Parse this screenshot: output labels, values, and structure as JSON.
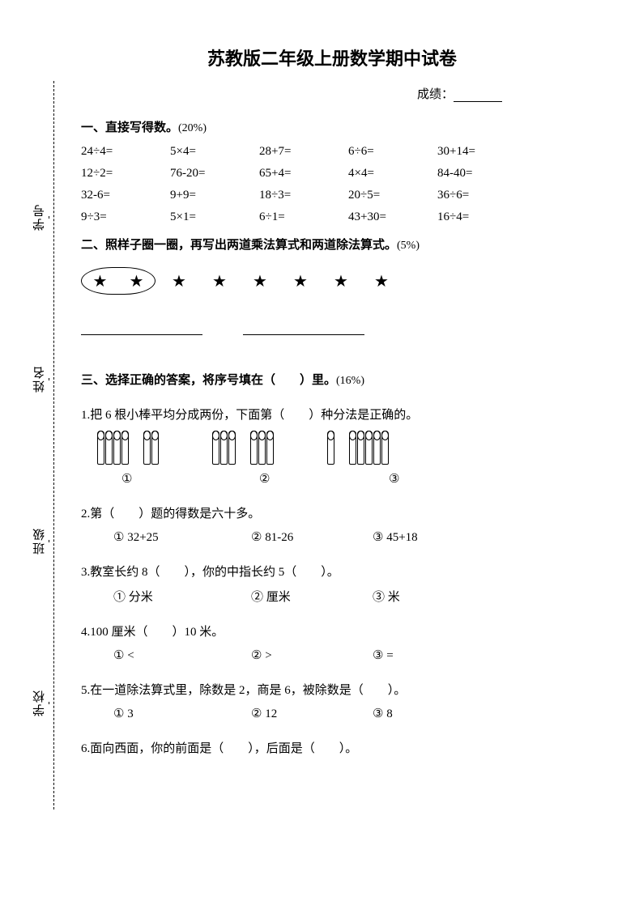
{
  "title": "苏教版二年级上册数学期中试卷",
  "score_label": "成绩：",
  "binding": {
    "school": "学校",
    "class": "班级",
    "name": "姓名",
    "number": "学号"
  },
  "section1": {
    "head_bold": "一、直接写得数。",
    "head_pct": "(20%)",
    "rows": [
      [
        "24÷4=",
        "5×4=",
        "28+7=",
        "6÷6=",
        "30+14="
      ],
      [
        "12÷2=",
        "76-20=",
        "65+4=",
        "4×4=",
        "84-40="
      ],
      [
        "32-6=",
        "9+9=",
        "18÷3=",
        "20÷5=",
        "36÷6="
      ],
      [
        "9÷3=",
        "5×1=",
        "6÷1=",
        "43+30=",
        "16÷4="
      ]
    ]
  },
  "section2": {
    "head_bold": "二、照样子圈一圈，再写出两道乘法算式和两道除法算式。",
    "head_pct": "(5%)",
    "star_char": "★",
    "total_stars": 8,
    "circled_count": 2
  },
  "section3": {
    "head_bold": "三、选择正确的答案，将序号填在（　　）里。",
    "head_pct": "(16%)",
    "q1": {
      "text": "1.把 6 根小棒平均分成两份，下面第（　　）种分法是正确的。",
      "groups": [
        [
          4,
          2
        ],
        [
          3,
          3
        ],
        [
          1,
          5
        ]
      ],
      "opts": [
        "①",
        "②",
        "③"
      ]
    },
    "q2": {
      "text": "2.第（　　）题的得数是六十多。",
      "opts": [
        "① 32+25",
        "② 81-26",
        "③ 45+18"
      ]
    },
    "q3": {
      "text": "3.教室长约 8（　　），你的中指长约 5（　　）。",
      "opts": [
        "① 分米",
        "② 厘米",
        "③ 米"
      ]
    },
    "q4": {
      "text": "4.100 厘米（　　）10 米。",
      "opts": [
        "①  <",
        "②  >",
        "③  ="
      ]
    },
    "q5": {
      "text": "5.在一道除法算式里，除数是 2，商是 6，被除数是（　　）。",
      "opts": [
        "① 3",
        "② 12",
        "③ 8"
      ]
    },
    "q6": {
      "text": "6.面向西面，你的前面是（　　），后面是（　　）。"
    }
  },
  "colors": {
    "text": "#000000",
    "background": "#ffffff"
  }
}
